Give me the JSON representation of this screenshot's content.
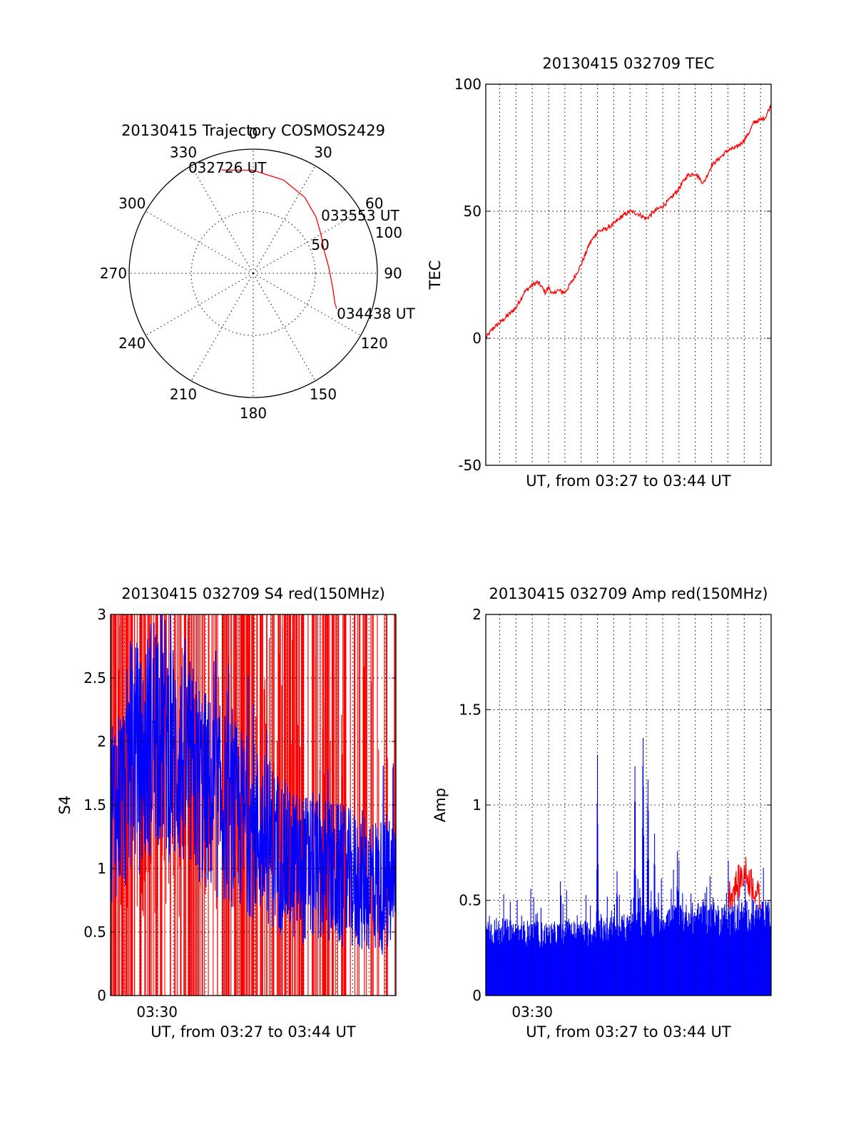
{
  "chart_data": [
    {
      "id": "trajectory",
      "type": "scatter",
      "projection": "polar",
      "title": "20130415 Trajectory COSMOS2429",
      "angle_labels": [
        "0",
        "30",
        "60",
        "90",
        "120",
        "150",
        "180",
        "210",
        "240",
        "270",
        "300",
        "330"
      ],
      "radius_labels": [
        "50",
        "100"
      ],
      "rlim": [
        0,
        100
      ],
      "grid": true,
      "series": [
        {
          "color": "#ff0000",
          "points": [
            [
              -17,
              87
            ],
            [
              0,
              83
            ],
            [
              18,
              79
            ],
            [
              34,
              74
            ],
            [
              48,
              68
            ],
            [
              60,
              63
            ],
            [
              72,
              60
            ],
            [
              85,
              61
            ],
            [
              100,
              65
            ],
            [
              110,
              70
            ],
            [
              113,
              73
            ]
          ]
        }
      ],
      "annotations": [
        {
          "text": "032726 UT",
          "azimuth": -17,
          "radius": 87
        },
        {
          "text": "033553 UT",
          "azimuth": 48,
          "radius": 68
        },
        {
          "text": "034438 UT",
          "azimuth": 113,
          "radius": 73
        }
      ]
    },
    {
      "id": "tec",
      "type": "line",
      "title": "20130415 032709 TEC",
      "ylabel": "TEC",
      "xlabel": "UT, from 03:27 to 03:44 UT",
      "ylim": [
        -50,
        100
      ],
      "yticks": [
        -50,
        0,
        50,
        100
      ],
      "xlim_minutes": [
        27.15,
        44.65
      ],
      "grid": true,
      "series": [
        {
          "color": "#ff0000",
          "x_minutes": [
            27.15,
            27.6,
            28.0,
            28.5,
            29.0,
            29.5,
            30.0,
            30.3,
            30.5,
            30.8,
            31.0,
            31.3,
            31.5,
            32.0,
            32.5,
            33.0,
            33.5,
            34.0,
            34.5,
            35.0,
            35.5,
            36.0,
            36.5,
            37.0,
            37.5,
            38.0,
            38.5,
            39.0,
            39.5,
            40.0,
            40.5,
            41.0,
            41.5,
            42.0,
            42.5,
            43.0,
            43.3,
            43.6,
            44.0,
            44.3,
            44.65
          ],
          "values": [
            0,
            4,
            6,
            9,
            12,
            18,
            21,
            22,
            21,
            18,
            20,
            17,
            19,
            18,
            23,
            29,
            37,
            42,
            43,
            45,
            48,
            50,
            49,
            47,
            50,
            52,
            55,
            59,
            64,
            65,
            61,
            68,
            71,
            74,
            75,
            78,
            81,
            85,
            86,
            87,
            92
          ]
        }
      ]
    },
    {
      "id": "s4",
      "type": "line",
      "title": "20130415 032709 S4 red(150MHz)",
      "ylabel": "S4",
      "xlabel": "UT, from 03:27 to 03:44 UT",
      "xtick_labels": [
        "03:30"
      ],
      "ylim": [
        0,
        3
      ],
      "yticks": [
        "0",
        "0.5",
        "1",
        "1.5",
        "2",
        "2.5",
        "3"
      ],
      "xlim_minutes": [
        27.15,
        44.65
      ],
      "grid": true,
      "series": [
        {
          "color": "#ff0000",
          "style": "dense-spikes",
          "envelope_minutes": [
            27.15,
            30,
            33,
            36,
            39,
            42,
            44.65
          ],
          "envelope_values": [
            3.0,
            3.0,
            3.0,
            3.0,
            3.0,
            2.6,
            3.0
          ]
        },
        {
          "color": "#0000ff",
          "style": "noisy-trace",
          "x_minutes": [
            27.15,
            28.0,
            28.5,
            29.0,
            30.0,
            31.0,
            32.0,
            33.0,
            34.0,
            35.0,
            36.0,
            37.0,
            38.0,
            39.0,
            40.0,
            41.0,
            42.0,
            43.0,
            44.0,
            44.65
          ],
          "values": [
            1.5,
            1.6,
            2.0,
            1.8,
            2.2,
            1.9,
            1.8,
            1.6,
            1.5,
            1.4,
            1.3,
            1.2,
            1.05,
            1.0,
            1.0,
            0.95,
            0.9,
            0.9,
            0.85,
            0.85
          ]
        }
      ]
    },
    {
      "id": "amp",
      "type": "line",
      "title": "20130415 032709 Amp red(150MHz)",
      "ylabel": "Amp",
      "xlabel": "UT, from 03:27 to 03:44 UT",
      "xtick_labels": [
        "03:30"
      ],
      "ylim": [
        0,
        2
      ],
      "yticks": [
        "0",
        "0.5",
        "1",
        "1.5",
        "2"
      ],
      "xlim_minutes": [
        27.15,
        44.65
      ],
      "grid": true,
      "series": [
        {
          "color": "#0000ff",
          "style": "dense-fill",
          "x_minutes": [
            27.15,
            28,
            29,
            30,
            31,
            32,
            33,
            34,
            35,
            36,
            37,
            38,
            39,
            40,
            41,
            42,
            43,
            44,
            44.65
          ],
          "values": [
            0.35,
            0.34,
            0.33,
            0.33,
            0.32,
            0.33,
            0.33,
            0.34,
            0.35,
            0.36,
            0.38,
            0.4,
            0.4,
            0.41,
            0.41,
            0.41,
            0.42,
            0.42,
            0.42
          ]
        },
        {
          "color": "#ff0000",
          "style": "sparse-spikes",
          "x_minutes": [
            42.0,
            42.5,
            43.0,
            43.5,
            44.0
          ],
          "values": [
            0.55,
            0.6,
            0.68,
            0.62,
            0.52
          ]
        }
      ],
      "spikes_minutes": [
        34.0,
        35.2,
        36.3,
        36.8,
        37.1,
        37.5,
        38.9,
        40.6
      ],
      "spikes_values": [
        1.34,
        0.72,
        1.31,
        1.59,
        1.28,
        0.92,
        0.8,
        0.58
      ]
    }
  ]
}
